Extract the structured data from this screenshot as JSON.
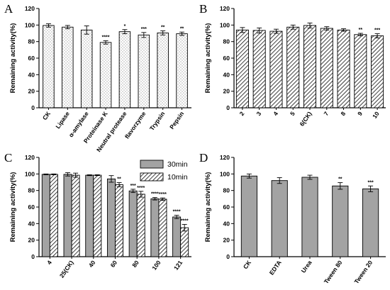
{
  "chart_data": [
    {
      "panel": "A",
      "type": "bar",
      "fill": "dots",
      "ylabel": "Remaining activity(%)",
      "ylim": [
        0,
        120
      ],
      "yticks": [
        0,
        20,
        40,
        60,
        80,
        100,
        120
      ],
      "categories": [
        "CK",
        "Lipase",
        "α-amylase",
        "Proteinase K",
        "Neutral protease",
        "flavorzyme",
        "Trypsin",
        "Pepsin"
      ],
      "values": [
        99.5,
        97.5,
        94,
        79,
        92,
        88,
        90.5,
        89.5
      ],
      "errors": [
        2,
        2,
        5,
        2,
        2.5,
        3,
        2.5,
        2
      ],
      "significance": [
        "",
        "",
        "",
        "****",
        "*",
        "***",
        "**",
        "**"
      ]
    },
    {
      "panel": "B",
      "type": "bar",
      "fill": "diagonal-hatch",
      "ylabel": "Remaining activity(%)",
      "ylim": [
        0,
        120
      ],
      "yticks": [
        0,
        20,
        40,
        60,
        80,
        100,
        120
      ],
      "categories": [
        "2",
        "3",
        "4",
        "5",
        "6(CK)",
        "7",
        "8",
        "9",
        "10"
      ],
      "values": [
        94,
        93.5,
        92.5,
        97.5,
        99.5,
        96,
        94,
        88.5,
        87
      ],
      "errors": [
        3,
        3,
        2.5,
        2.5,
        3,
        2,
        1.5,
        1.5,
        2.5
      ],
      "significance": [
        "",
        "",
        "",
        "",
        "",
        "",
        "",
        "**",
        "***"
      ]
    },
    {
      "panel": "C",
      "type": "bar",
      "ylabel": "Remaining activity(%)",
      "ylim": [
        0,
        120
      ],
      "yticks": [
        0,
        20,
        40,
        60,
        80,
        100,
        120
      ],
      "categories": [
        "4",
        "25(CK)",
        "40",
        "60",
        "80",
        "100",
        "121"
      ],
      "legend": [
        "30min",
        "10min"
      ],
      "series": [
        {
          "name": "30min",
          "fill": "gray",
          "values": [
            99.5,
            99.5,
            98.5,
            94,
            79.5,
            70,
            48
          ],
          "errors": [
            0.5,
            2,
            0.5,
            4,
            2,
            1.5,
            2
          ],
          "significance": [
            "",
            "",
            "",
            "",
            "***",
            "****",
            "****"
          ]
        },
        {
          "name": "10min",
          "fill": "diagonal-hatch",
          "values": [
            99.5,
            98.5,
            98.5,
            87,
            75.5,
            69.5,
            35
          ],
          "errors": [
            0.5,
            2.5,
            0.5,
            2.5,
            3.5,
            1.5,
            4
          ],
          "significance": [
            "",
            "",
            "",
            "**",
            "****",
            "****",
            "****"
          ]
        }
      ]
    },
    {
      "panel": "D",
      "type": "bar",
      "fill": "gray",
      "ylabel": "Remaining activity(%)",
      "ylim": [
        0,
        120
      ],
      "yticks": [
        0,
        20,
        40,
        60,
        80,
        100,
        120
      ],
      "categories": [
        "CK",
        "EDTA",
        "Urea",
        "Tween 80",
        "Tween 20"
      ],
      "values": [
        97.5,
        92,
        96,
        85.5,
        82
      ],
      "errors": [
        2.5,
        3.5,
        2.5,
        4,
        3.5
      ],
      "significance": [
        "",
        "",
        "",
        "**",
        "***"
      ]
    }
  ]
}
